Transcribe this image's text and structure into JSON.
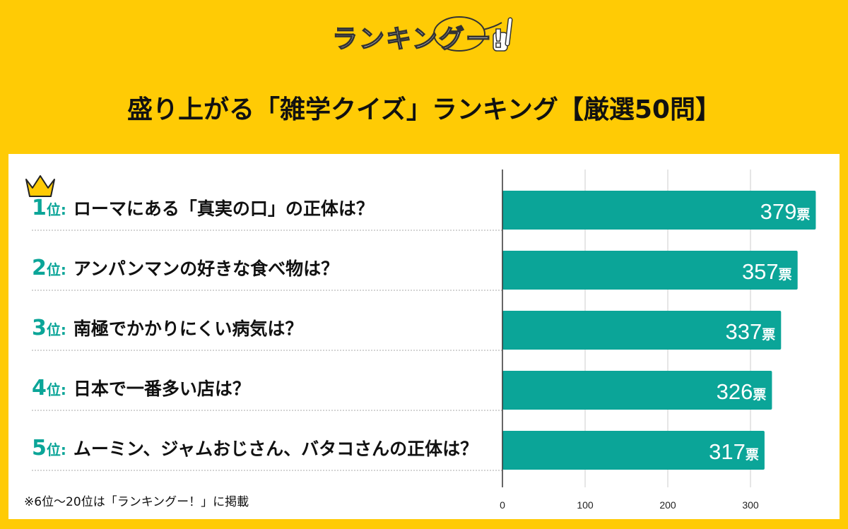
{
  "logo": {
    "text": "ランキングー!"
  },
  "title": "盛り上がる「雑学クイズ」ランキング【厳選50問】",
  "note": "※6位〜20位は「ランキングー！」に掲載",
  "rank_suffix": "位",
  "colors": {
    "background": "#FFCB05",
    "bar": "#0BA598",
    "panel": "#FFFFFF"
  },
  "chart_data": {
    "type": "bar",
    "orientation": "horizontal",
    "categories": [
      "ローマにある「真実の口」の正体は？",
      "アンパンマンの好きな食べ物は？",
      "南極でかかりにくい病気は？",
      "日本で一番多い店は？",
      "ムーミン、ジャムおじさん、バタコさんの正体は？"
    ],
    "ranks": [
      "1",
      "2",
      "3",
      "4",
      "5"
    ],
    "values": [
      379,
      357,
      337,
      326,
      317
    ],
    "value_unit": "票",
    "xticks": [
      0,
      100,
      200,
      300
    ],
    "xlim": [
      0,
      400
    ],
    "grid": true
  }
}
